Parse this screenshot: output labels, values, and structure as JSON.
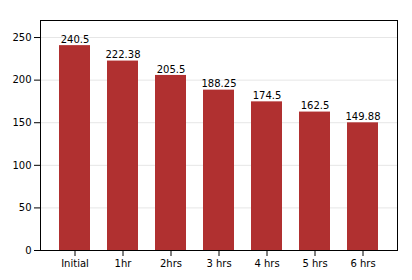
{
  "chart_data": {
    "type": "bar",
    "categories": [
      "Initial",
      "1hr",
      "2hrs",
      "3 hrs",
      "4 hrs",
      "5 hrs",
      "6 hrs"
    ],
    "values": [
      240.5,
      222.38,
      205.5,
      188.25,
      174.5,
      162.5,
      149.88
    ],
    "color": "#b03030",
    "ylim": [
      0,
      270
    ],
    "yticks": [
      0,
      50,
      100,
      150,
      200,
      250
    ],
    "grid": true,
    "data_labels": true
  }
}
